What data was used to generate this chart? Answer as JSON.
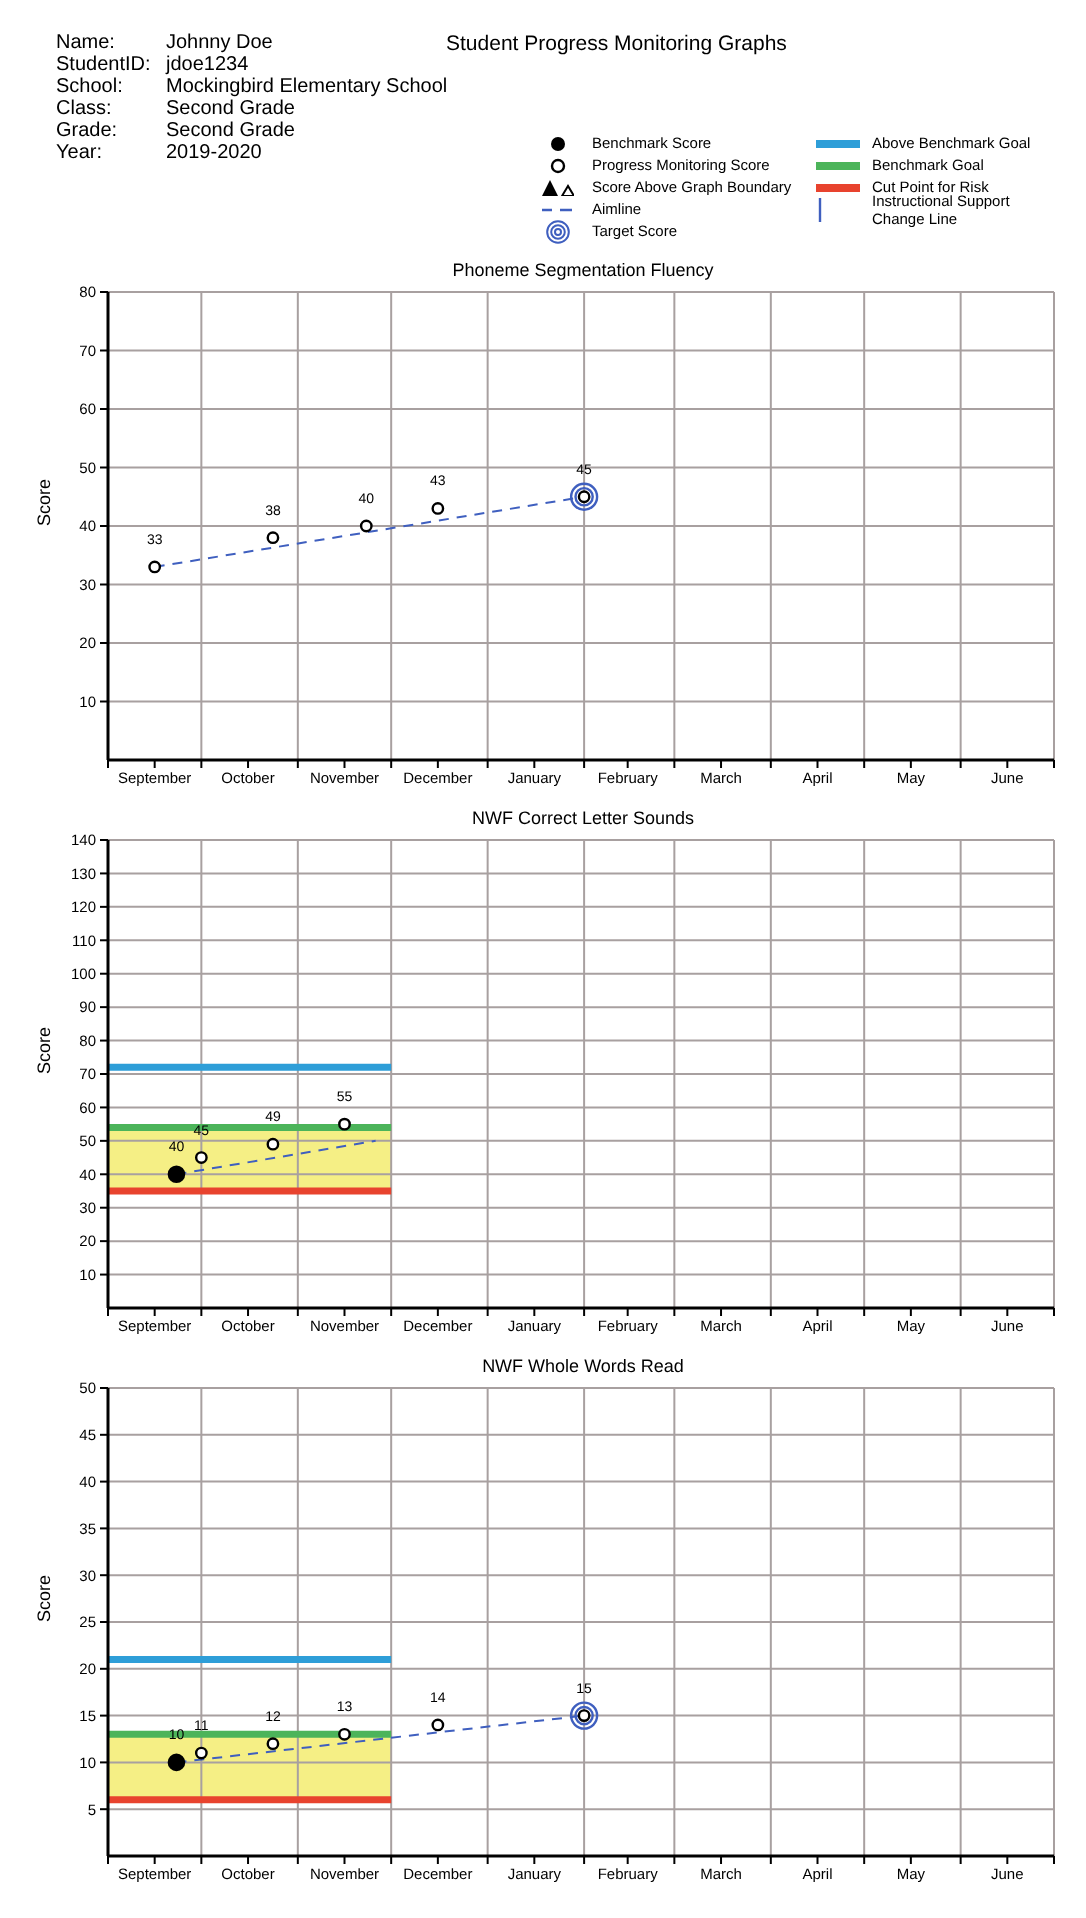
{
  "chart_data": [
    {
      "type": "other",
      "title": "Student Progress Monitoring Graphs",
      "annotations": [
        "Name:",
        "Johnny Doe",
        "StudentID:",
        "jdoe1234",
        "School:",
        "Mockingbird Elementary School",
        "Class:",
        "Second Grade",
        "Grade:",
        "Second Grade",
        "Year:",
        "2019-2020",
        "Benchmark Score",
        "Progress Monitoring Score",
        "Score Above Graph Boundary",
        "Aimline",
        "Target Score",
        "Above Benchmark Goal",
        "Benchmark Goal",
        "Cut Point for Risk",
        "Instructional Support Change Line"
      ]
    },
    {
      "type": "scatter",
      "title": "Phoneme Segmentation Fluency",
      "ylabel": "Score",
      "xlim": [
        "2019-09-01",
        "2020-07-01"
      ],
      "xticks": [
        {
          "value": "2019-09-01",
          "label": null
        },
        {
          "value": "2019-09-16",
          "label": "September"
        },
        {
          "value": "2019-10-01",
          "label": null
        },
        {
          "value": "2019-10-16",
          "label": "October"
        },
        {
          "value": "2019-11-01",
          "label": null
        },
        {
          "value": "2019-11-16",
          "label": "November"
        },
        {
          "value": "2019-12-01",
          "label": null
        },
        {
          "value": "2019-12-16",
          "label": "December"
        },
        {
          "value": "2020-01-01",
          "label": null
        },
        {
          "value": "2020-01-16",
          "label": "January"
        },
        {
          "value": "2020-02-01",
          "label": null
        },
        {
          "value": "2020-02-15",
          "label": "February"
        },
        {
          "value": "2020-03-01",
          "label": null
        },
        {
          "value": "2020-03-16",
          "label": "March"
        },
        {
          "value": "2020-04-01",
          "label": null
        },
        {
          "value": "2020-04-16",
          "label": "April"
        },
        {
          "value": "2020-05-01",
          "label": null
        },
        {
          "value": "2020-05-16",
          "label": "May"
        },
        {
          "value": "2020-06-01",
          "label": null
        },
        {
          "value": "2020-06-16",
          "label": "June"
        },
        {
          "value": "2020-07-01",
          "label": null
        }
      ],
      "ylim": [
        0,
        80
      ],
      "yticks": [
        10,
        20,
        30,
        40,
        50,
        60,
        70,
        80
      ],
      "grid": true,
      "series": [
        {
          "type": "line",
          "line_style": "dashed",
          "color": "#3f5fbf",
          "x": [
            "2019-09-16",
            "2020-02-01"
          ],
          "values": [
            33,
            45
          ]
        },
        {
          "type": "scatter",
          "color": "#3f5fbf",
          "x": [
            "2020-02-01"
          ],
          "values": [
            45
          ]
        },
        {
          "type": "scatter",
          "marker": "circle",
          "color": "#ffffff",
          "x": [
            "2019-09-16",
            "2019-10-24",
            "2019-11-23",
            "2019-12-16",
            "2020-02-01"
          ],
          "values": [
            33,
            38,
            40,
            43,
            45
          ],
          "value_labels": [
            "33",
            "38",
            "40",
            "43",
            "45"
          ]
        }
      ]
    },
    {
      "type": "scatter",
      "title": "NWF Correct Letter Sounds",
      "ylabel": "Score",
      "xlim": [
        "2019-09-01",
        "2020-07-01"
      ],
      "xticks": [
        {
          "value": "2019-09-01",
          "label": null
        },
        {
          "value": "2019-09-16",
          "label": "September"
        },
        {
          "value": "2019-10-01",
          "label": null
        },
        {
          "value": "2019-10-16",
          "label": "October"
        },
        {
          "value": "2019-11-01",
          "label": null
        },
        {
          "value": "2019-11-16",
          "label": "November"
        },
        {
          "value": "2019-12-01",
          "label": null
        },
        {
          "value": "2019-12-16",
          "label": "December"
        },
        {
          "value": "2020-01-01",
          "label": null
        },
        {
          "value": "2020-01-16",
          "label": "January"
        },
        {
          "value": "2020-02-01",
          "label": null
        },
        {
          "value": "2020-02-15",
          "label": "February"
        },
        {
          "value": "2020-03-01",
          "label": null
        },
        {
          "value": "2020-03-16",
          "label": "March"
        },
        {
          "value": "2020-04-01",
          "label": null
        },
        {
          "value": "2020-04-16",
          "label": "April"
        },
        {
          "value": "2020-05-01",
          "label": null
        },
        {
          "value": "2020-05-16",
          "label": "May"
        },
        {
          "value": "2020-06-01",
          "label": null
        },
        {
          "value": "2020-06-16",
          "label": "June"
        },
        {
          "value": "2020-07-01",
          "label": null
        }
      ],
      "ylim": [
        0,
        140
      ],
      "yticks": [
        10,
        20,
        30,
        40,
        50,
        60,
        70,
        80,
        90,
        100,
        110,
        120,
        130,
        140
      ],
      "grid": true,
      "series": [
        {
          "type": "line",
          "line_style": "solid",
          "color": "#2e9ed8",
          "x": [
            "2019-09-01",
            "2019-12-01"
          ],
          "values": [
            72,
            72
          ]
        },
        {
          "type": "line",
          "line_style": "solid",
          "color": "#4cb45a",
          "x": [
            "2019-09-01",
            "2019-12-01"
          ],
          "values": [
            54,
            54
          ]
        },
        {
          "type": "line",
          "line_style": "solid",
          "color": "#e8432e",
          "x": [
            "2019-09-01",
            "2019-12-01"
          ],
          "values": [
            35,
            35
          ]
        },
        {
          "type": "line",
          "line_style": "dashed",
          "color": "#3f5fbf",
          "x": [
            "2019-09-23",
            "2019-11-26"
          ],
          "values": [
            40,
            50
          ]
        },
        {
          "type": "scatter",
          "marker": "circle",
          "color": "#000000",
          "x": [
            "2019-09-23"
          ],
          "values": [
            40
          ],
          "value_labels": [
            "40"
          ]
        },
        {
          "type": "scatter",
          "marker": "circle",
          "color": "#ffffff",
          "x": [
            "2019-10-01",
            "2019-10-24",
            "2019-11-16"
          ],
          "values": [
            45,
            49,
            55
          ],
          "value_labels": [
            "45",
            "49",
            "55"
          ]
        }
      ]
    },
    {
      "type": "scatter",
      "title": "NWF Whole Words Read",
      "ylabel": "Score",
      "xlim": [
        "2019-09-01",
        "2020-07-01"
      ],
      "xticks": [
        {
          "value": "2019-09-01",
          "label": null
        },
        {
          "value": "2019-09-16",
          "label": "September"
        },
        {
          "value": "2019-10-01",
          "label": null
        },
        {
          "value": "2019-10-16",
          "label": "October"
        },
        {
          "value": "2019-11-01",
          "label": null
        },
        {
          "value": "2019-11-16",
          "label": "November"
        },
        {
          "value": "2019-12-01",
          "label": null
        },
        {
          "value": "2019-12-16",
          "label": "December"
        },
        {
          "value": "2020-01-01",
          "label": null
        },
        {
          "value": "2020-01-16",
          "label": "January"
        },
        {
          "value": "2020-02-01",
          "label": null
        },
        {
          "value": "2020-02-15",
          "label": "February"
        },
        {
          "value": "2020-03-01",
          "label": null
        },
        {
          "value": "2020-03-16",
          "label": "March"
        },
        {
          "value": "2020-04-01",
          "label": null
        },
        {
          "value": "2020-04-16",
          "label": "April"
        },
        {
          "value": "2020-05-01",
          "label": null
        },
        {
          "value": "2020-05-16",
          "label": "May"
        },
        {
          "value": "2020-06-01",
          "label": null
        },
        {
          "value": "2020-06-16",
          "label": "June"
        },
        {
          "value": "2020-07-01",
          "label": null
        }
      ],
      "ylim": [
        0,
        50
      ],
      "yticks": [
        5,
        10,
        15,
        20,
        25,
        30,
        35,
        40,
        45,
        50
      ],
      "grid": true,
      "series": [
        {
          "type": "line",
          "line_style": "solid",
          "color": "#2e9ed8",
          "x": [
            "2019-09-01",
            "2019-12-01"
          ],
          "values": [
            21,
            21
          ]
        },
        {
          "type": "line",
          "line_style": "solid",
          "color": "#4cb45a",
          "x": [
            "2019-09-01",
            "2019-12-01"
          ],
          "values": [
            13,
            13
          ]
        },
        {
          "type": "line",
          "line_style": "solid",
          "color": "#e8432e",
          "x": [
            "2019-09-01",
            "2019-12-01"
          ],
          "values": [
            6,
            6
          ]
        },
        {
          "type": "line",
          "line_style": "dashed",
          "color": "#3f5fbf",
          "x": [
            "2019-09-23",
            "2020-02-01"
          ],
          "values": [
            10,
            15
          ]
        },
        {
          "type": "scatter",
          "color": "#3f5fbf",
          "x": [
            "2020-02-01"
          ],
          "values": [
            15
          ]
        },
        {
          "type": "scatter",
          "marker": "circle",
          "color": "#000000",
          "x": [
            "2019-09-23"
          ],
          "values": [
            10
          ],
          "value_labels": [
            "10"
          ]
        },
        {
          "type": "scatter",
          "marker": "circle",
          "color": "#ffffff",
          "x": [
            "2019-10-01",
            "2019-10-24",
            "2019-11-16",
            "2019-12-16",
            "2020-02-01"
          ],
          "values": [
            11,
            12,
            13,
            14,
            15
          ],
          "value_labels": [
            "11",
            "12",
            "13",
            "14",
            "15"
          ]
        }
      ]
    }
  ]
}
